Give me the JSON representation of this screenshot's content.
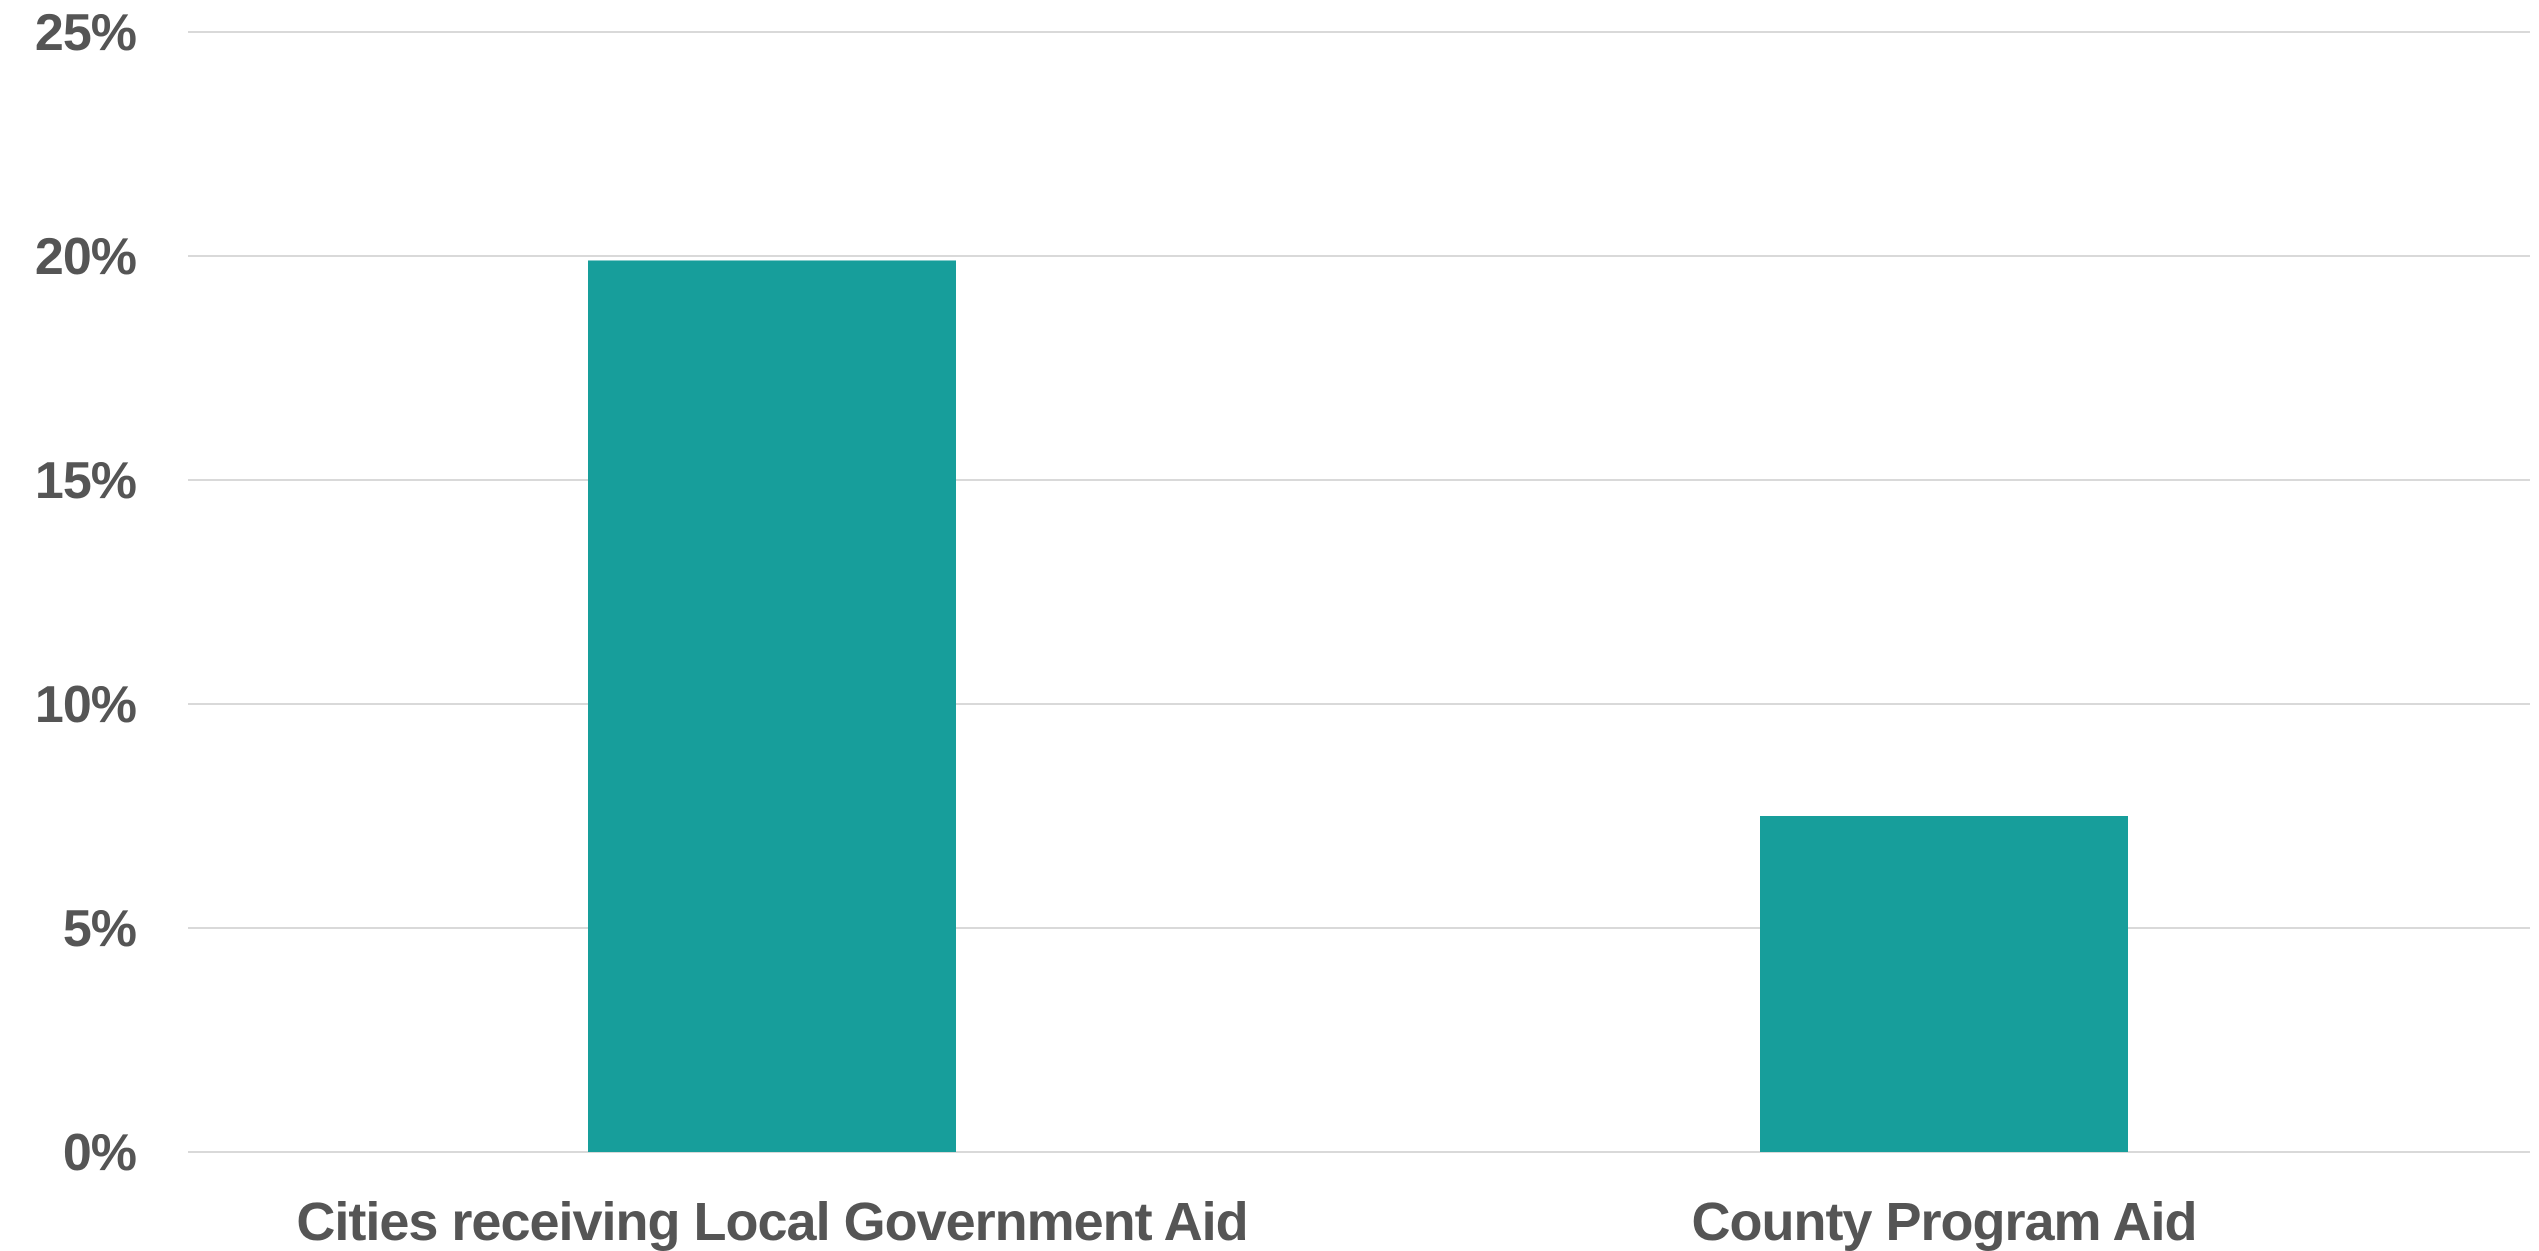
{
  "chart_data": {
    "type": "bar",
    "categories": [
      "Cities receiving Local Government Aid",
      "County Program Aid"
    ],
    "values": [
      19.9,
      7.5
    ],
    "title": "",
    "xlabel": "",
    "ylabel": "",
    "ylim": [
      0,
      25
    ],
    "y_ticks": [
      0,
      5,
      10,
      15,
      20,
      25
    ],
    "y_tick_labels": [
      "0%",
      "5%",
      "10%",
      "15%",
      "20%",
      "25%"
    ],
    "grid": true,
    "legend": "none",
    "bar_color": "#179e9b"
  }
}
